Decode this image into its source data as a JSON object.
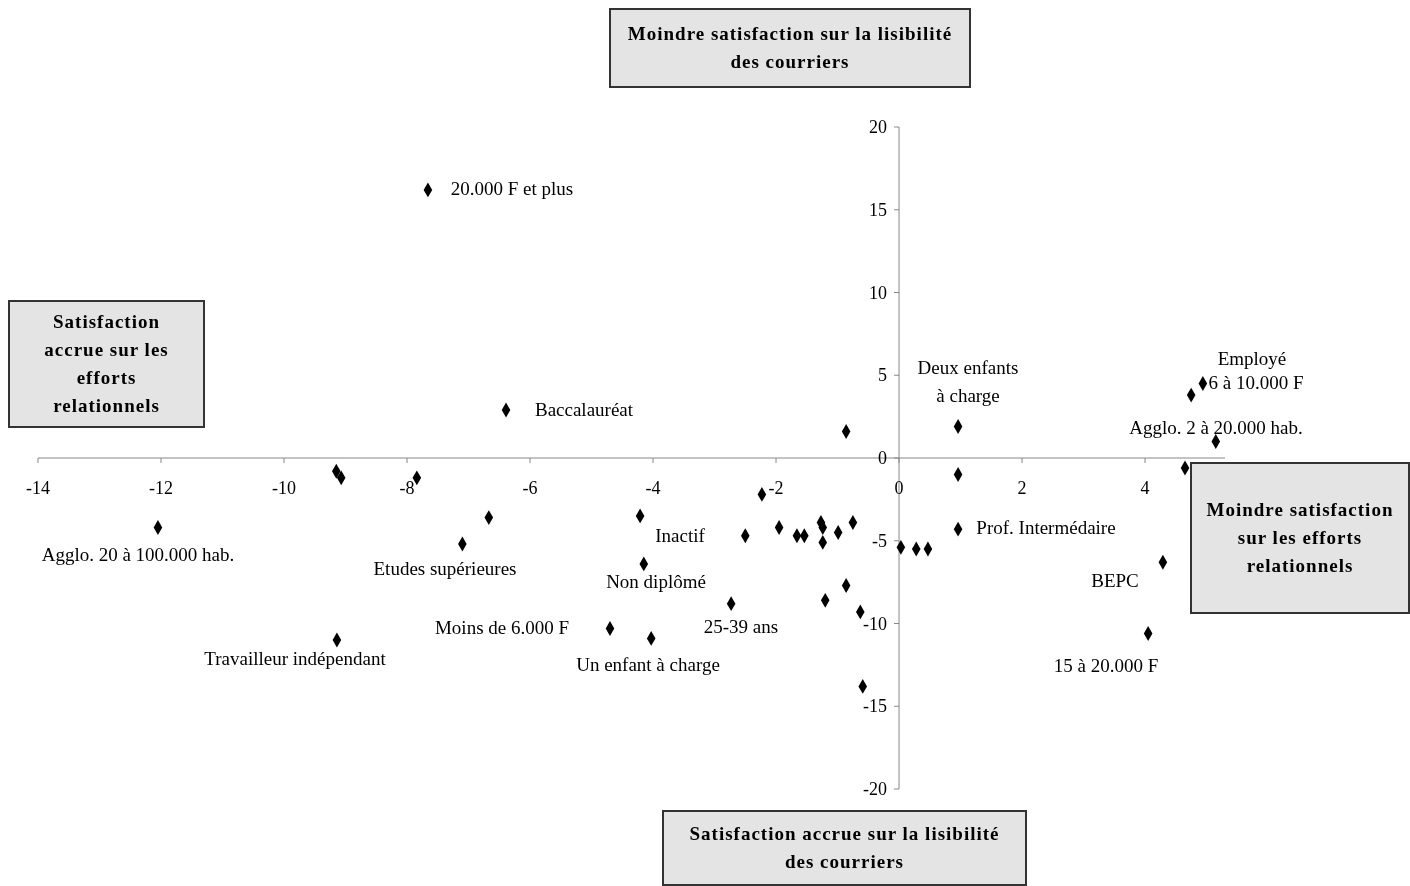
{
  "chart_data": {
    "type": "scatter",
    "marker": "diamond",
    "grid": false,
    "x": [
      -7.66,
      -6.39,
      -0.86,
      0.96,
      4.94,
      4.75,
      5.15,
      4.65,
      0.96,
      -9.15,
      -9.07,
      -7.84,
      -12.05,
      -6.67,
      -7.1,
      -4.21,
      -4.15,
      -2.5,
      -2.23,
      -1.95,
      -1.66,
      -1.54,
      -1.27,
      -1.24,
      -1.24,
      -0.99,
      -0.75,
      0.03,
      0.28,
      0.47,
      0.96,
      4.29,
      4.05,
      -0.86,
      -1.2,
      -0.63,
      -0.59,
      -2.73,
      -4.7,
      -4.03,
      -9.14
    ],
    "series": [
      {
        "color": "#000000",
        "values": [
          16.2,
          2.9,
          1.6,
          1.9,
          4.5,
          3.8,
          1.0,
          -0.6,
          -1.0,
          -0.8,
          -1.2,
          -1.2,
          -4.2,
          -3.6,
          -5.2,
          -3.5,
          -6.4,
          -4.7,
          -2.2,
          -4.2,
          -4.7,
          -4.7,
          -3.9,
          -4.2,
          -5.1,
          -4.5,
          -3.9,
          -5.4,
          -5.5,
          -5.5,
          -4.3,
          -6.3,
          -10.6,
          -7.7,
          -8.6,
          -9.3,
          -13.8,
          -8.8,
          -10.3,
          -10.9,
          -11.0
        ]
      }
    ],
    "xlim": [
      -14,
      5.3
    ],
    "xticks": [
      -14,
      -12,
      -10,
      -8,
      -6,
      -4,
      -2,
      0,
      2,
      4
    ],
    "ylim": [
      -20,
      20
    ],
    "yticks": [
      -20,
      -15,
      -10,
      -5,
      0,
      5,
      10,
      15,
      20
    ],
    "annotations": [
      "Moindre satisfaction sur la lisibilité des courriers",
      "Satisfaction accrue sur les efforts relationnels",
      "Moindre satisfaction sur les efforts relationnels",
      "Satisfaction accrue sur la lisibilité des courriers",
      "20.000 F et plus",
      "Baccalauréat",
      "Deux enfants\nà charge",
      "Employé",
      "6 à 10.000 F",
      "Agglo. 2 à 20.000 hab.",
      "Agglo. 20 à 100.000 hab.",
      "Etudes supérieures",
      "Inactif",
      "Non diplômé",
      "25-39 ans",
      "Moins de 6.000 F",
      "Un enfant à charge",
      "Travailleur indépendant",
      "Prof. Intermédaire",
      "BEPC",
      "15 à 20.000 F"
    ]
  }
}
